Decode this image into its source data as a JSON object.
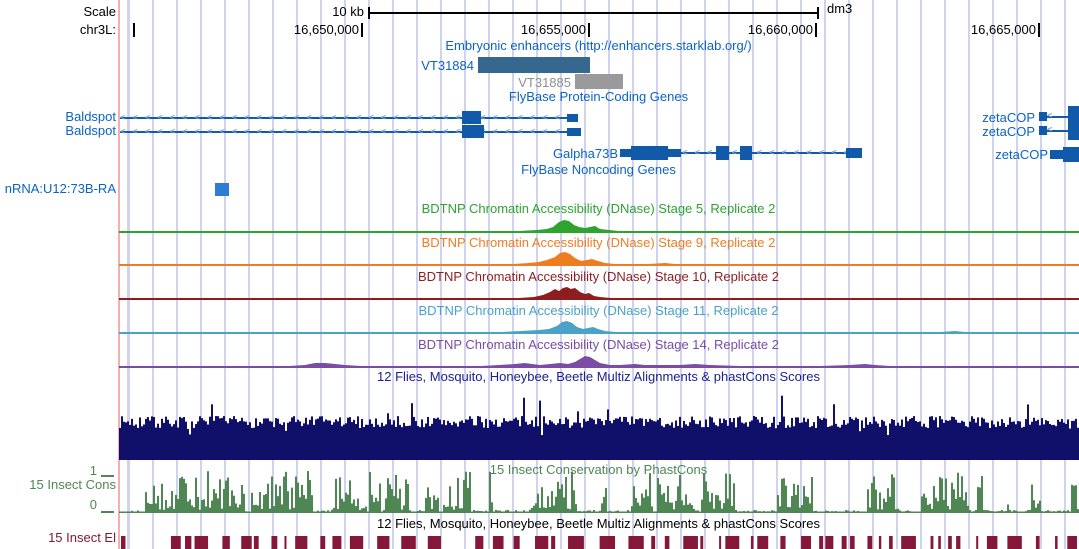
{
  "colors": {
    "grid": "#cfd3ee",
    "pink": "#f2afae",
    "blue": "#0b63c5",
    "geneblue": "#1159a9",
    "arrow": "#7fa6d8",
    "enh1": "#36688f",
    "enh2": "#9a9a9a",
    "ncbox": "#2f7cd6",
    "green5": "#2ea32e",
    "orange9": "#ee7d22",
    "red10": "#8e1e1e",
    "blue11": "#4aa2c8",
    "purple14": "#7a4ca5",
    "navy": "#10106b",
    "navytitle": "#1c1c8e",
    "consgreen": "#4e8754",
    "maroon": "#851838"
  },
  "ruler": {
    "scale_label": "Scale",
    "scale_value": "10 kb",
    "assembly": "dm3",
    "chrom_label": "chr3L:",
    "coords": {
      "c1": "16,650,000",
      "c2": "16,655,000",
      "c3": "16,660,000",
      "c4": "16,665,000"
    }
  },
  "enhancers": {
    "title": "Embryonic enhancers (http://enhancers.starklab.org/)",
    "item1": "VT31884",
    "item2": "VT31885"
  },
  "flybase_pc": {
    "title": "FlyBase Protein-Coding Genes",
    "baldspot": "Baldspot",
    "galpha": "Galpha73B",
    "zetacop": "zetaCOP"
  },
  "flybase_nc": {
    "title": "FlyBase Noncoding Genes",
    "gene": "nRNA:U12:73B-RA"
  },
  "bdtnp": {
    "stage5": "BDTNP Chromatin Accessibility (DNase) Stage 5, Replicate 2",
    "stage9": "BDTNP Chromatin Accessibility (DNase) Stage 9, Replicate 2",
    "stage10": "BDTNP Chromatin Accessibility (DNase) Stage 10, Replicate 2",
    "stage11": "BDTNP Chromatin Accessibility (DNase) Stage 11, Replicate 2",
    "stage14": "BDTNP Chromatin Accessibility (DNase) Stage 14, Replicate 2"
  },
  "multiz": {
    "title": "12 Flies, Mosquito, Honeybee, Beetle Multiz Alignments & phastCons Scores"
  },
  "conservation": {
    "title": "15 Insect Conservation by PhastCons",
    "label": "15 Insect Cons",
    "axis_max": "1",
    "axis_min": "0"
  },
  "multiz2": {
    "title": "12 Flies, Mosquito, Honeybee, Beetle Multiz Alignments & phastCons Scores"
  },
  "elements": {
    "label": "15 Insect El"
  }
}
